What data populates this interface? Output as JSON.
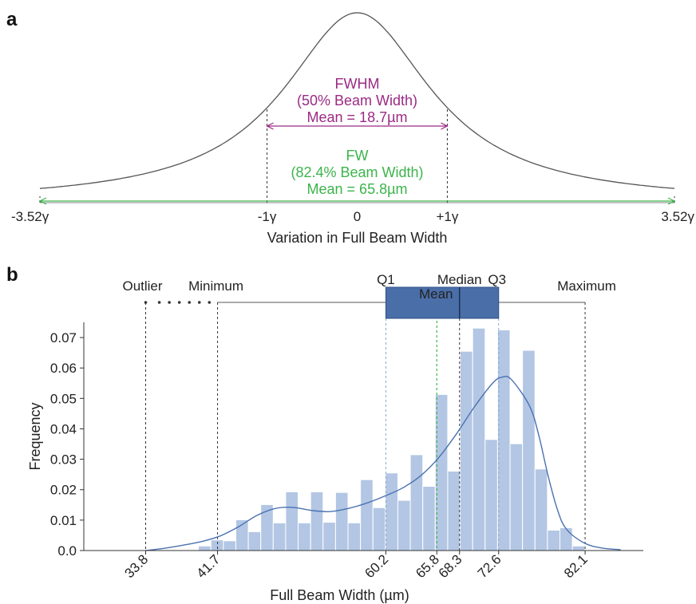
{
  "panel_a": {
    "label": "a",
    "chart_data": {
      "type": "line",
      "description_note": "",
      "xlabel": "Variation in Full Beam Width",
      "x_ticks": [
        "-3.52γ",
        "-1γ",
        "0",
        "+1γ",
        "3.52γ"
      ],
      "x_tick_values": [
        -3.52,
        -1,
        0,
        1,
        3.52
      ],
      "xlim": [
        -3.52,
        3.52
      ],
      "curve_color": "#555555",
      "fwhm": {
        "lines": [
          "FWHM",
          "(50% Beam Width)",
          "Mean = 18.7µm"
        ],
        "from": -1,
        "to": 1,
        "color": "#9b2a84"
      },
      "fw": {
        "lines": [
          "FW",
          "(82.4% Beam Width)",
          "Mean = 65.8µm"
        ],
        "from": -3.52,
        "to": 3.52,
        "color": "#3cb44b"
      }
    }
  },
  "panel_b": {
    "label": "b",
    "chart_data": {
      "type": "bar",
      "xlabel": "Full Beam Width (µm)",
      "ylabel": "Frequency",
      "xlim": [
        27.0,
        88.5
      ],
      "ylim": [
        0,
        0.075
      ],
      "y_ticks": [
        0.0,
        0.01,
        0.02,
        0.03,
        0.04,
        0.05,
        0.06,
        0.07
      ],
      "x_ticks": [
        33.8,
        41.7,
        60.2,
        65.8,
        68.3,
        72.6,
        82.1
      ],
      "bins": {
        "start": 39.6,
        "width": 1.37,
        "values": [
          0.0015,
          0.0035,
          0.0032,
          0.0101,
          0.0062,
          0.0151,
          0.0091,
          0.0193,
          0.0091,
          0.0193,
          0.0093,
          0.0191,
          0.0091,
          0.0233,
          0.0141,
          0.0255,
          0.0165,
          0.0315,
          0.0211,
          0.0513,
          0.0261,
          0.0655,
          0.0731,
          0.0365,
          0.0725,
          0.0351,
          0.0658,
          0.0268,
          0.0067,
          0.0075,
          0.0015
        ]
      },
      "bar_color": "#b3c6e4",
      "kde": {
        "x": [
          33.8,
          36,
          38,
          40,
          42,
          44,
          46,
          48,
          50,
          52,
          54,
          56,
          58,
          60,
          62,
          64,
          66,
          68,
          70,
          72,
          73,
          74,
          76,
          77,
          78,
          79,
          80,
          82,
          84,
          86
        ],
        "y": [
          0.0,
          0.0008,
          0.0018,
          0.003,
          0.0048,
          0.0078,
          0.0115,
          0.0138,
          0.0142,
          0.0132,
          0.0128,
          0.0138,
          0.0155,
          0.0178,
          0.0205,
          0.0245,
          0.0305,
          0.0385,
          0.0475,
          0.0552,
          0.057,
          0.0562,
          0.0475,
          0.038,
          0.025,
          0.014,
          0.0072,
          0.0025,
          0.0008,
          0.0003
        ],
        "color": "#4b72b0"
      },
      "boxplot": {
        "outlier_label": "Outlier",
        "minimum_label": "Minimum",
        "q1_label": "Q1",
        "median_label": "Median",
        "q3_label": "Q3",
        "mean_label": "Mean",
        "maximum_label": "Maximum",
        "outlier": 33.8,
        "minimum": 41.7,
        "q1": 60.2,
        "mean": 65.8,
        "median": 68.3,
        "q3": 72.6,
        "maximum": 82.1,
        "box_color": "#4a6ea8",
        "mean_color": "#3cb44b",
        "outlier_dots": [
          33.8,
          35.3,
          36.4,
          37.5,
          38.6,
          39.7,
          40.8
        ]
      }
    }
  }
}
